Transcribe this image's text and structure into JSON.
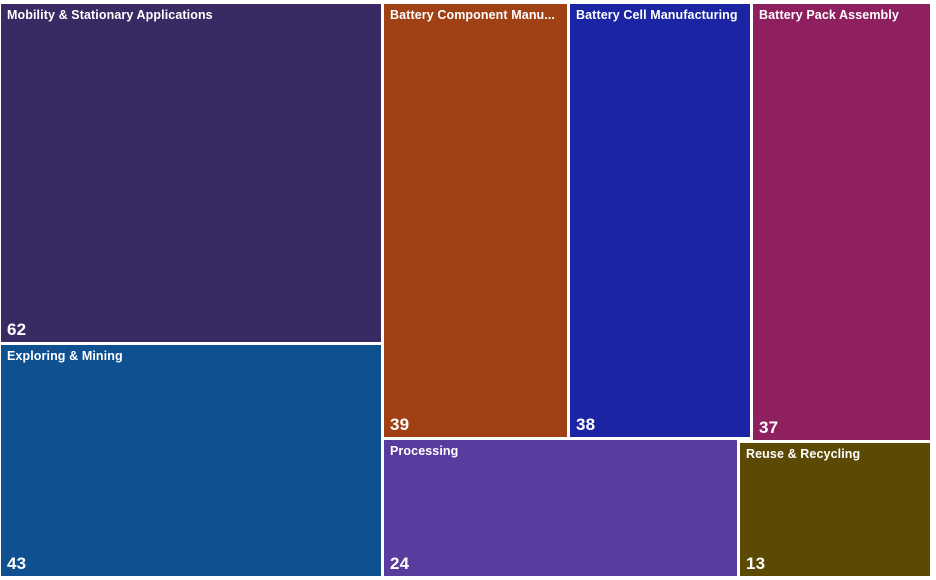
{
  "chart_data": {
    "type": "treemap",
    "title": "",
    "total": 256,
    "background": "#FFFFFF",
    "label_color": "#FFFFFF",
    "layout": "left column: two stacked tiles (62, 43); right section: top row of three tiles (39, 38, 37), bottom row of two tiles (24, 13)",
    "nodes": [
      {
        "label": "Mobility & Stationary Applications",
        "value": 62,
        "color": "#3A2A64"
      },
      {
        "label": "Exploring & Mining",
        "value": 43,
        "color": "#0F5190"
      },
      {
        "label": "Battery Component Manu...",
        "value": 39,
        "color": "#A04115"
      },
      {
        "label": "Battery Cell Manufacturing",
        "value": 38,
        "color": "#1B24A3"
      },
      {
        "label": "Battery Pack Assembly",
        "value": 37,
        "color": "#8E2060"
      },
      {
        "label": "Processing",
        "value": 24,
        "color": "#5A3C9E"
      },
      {
        "label": "Reuse & Recycling",
        "value": 13,
        "color": "#5C4A04"
      }
    ]
  }
}
